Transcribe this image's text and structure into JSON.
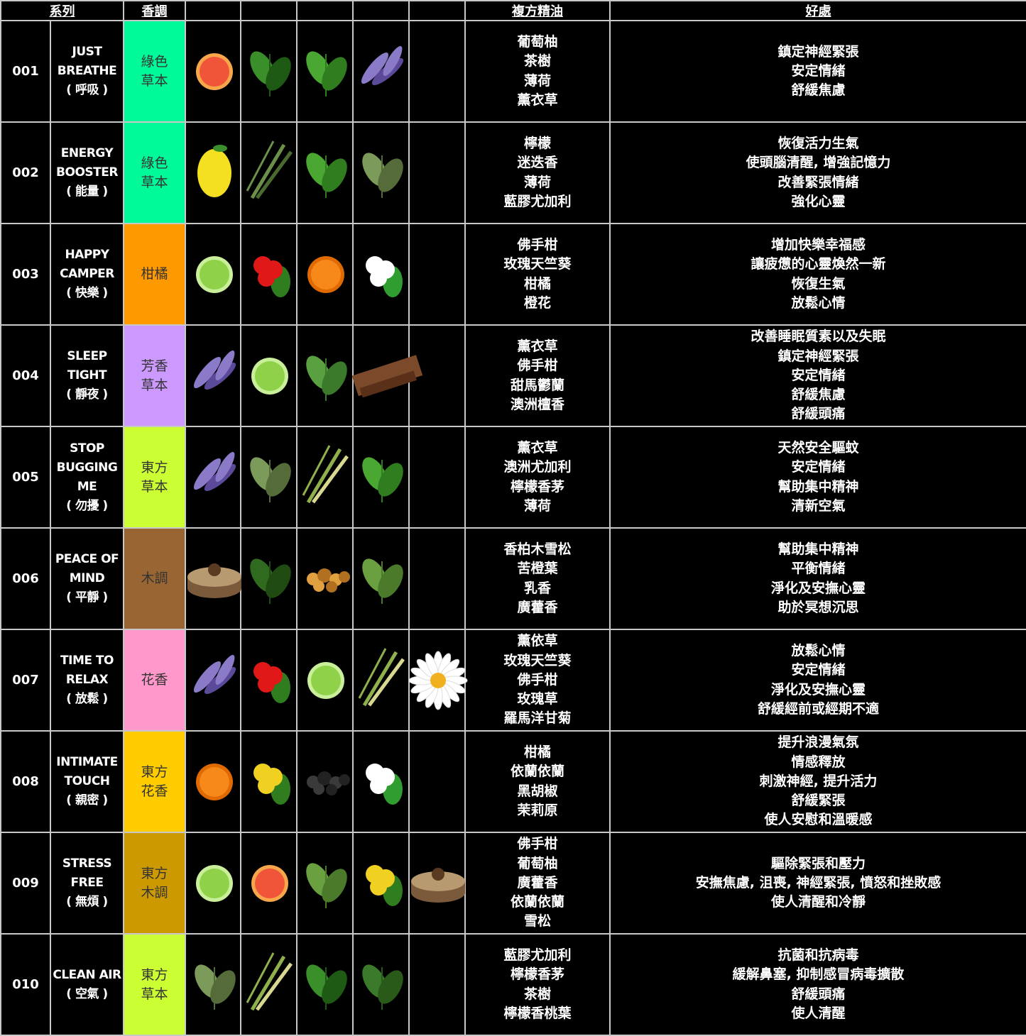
{
  "header": {
    "series": "系列",
    "note": "香調",
    "oils": "複方精油",
    "benefits": "好處"
  },
  "rows": [
    {
      "id": "001",
      "name": [
        "JUST",
        "BREATHE",
        "( 呼吸 )"
      ],
      "note": [
        "綠色",
        "草本"
      ],
      "note_color": "#00FA9A",
      "ingredients": [
        "grapefruit",
        "tea-tree",
        "mint",
        "lavender"
      ],
      "oils": [
        "葡萄柚",
        "茶樹",
        "薄荷",
        "薰衣草"
      ],
      "benefits": [
        "鎮定神經緊張",
        "安定情緒",
        "舒緩焦慮"
      ]
    },
    {
      "id": "002",
      "name": [
        "ENERGY",
        "BOOSTER",
        "( 能量 )"
      ],
      "note": [
        "綠色",
        "草本"
      ],
      "note_color": "#00FA9A",
      "ingredients": [
        "lemon",
        "rosemary",
        "mint",
        "eucalyptus"
      ],
      "oils": [
        "檸檬",
        "迷迭香",
        "薄荷",
        "藍膠尤加利"
      ],
      "benefits": [
        "恢復活力生氣",
        "使頭腦清醒, 增強記憶力",
        "改善緊張情緒",
        "強化心靈"
      ]
    },
    {
      "id": "003",
      "name": [
        "HAPPY",
        "CAMPER",
        "( 快樂 )"
      ],
      "note": [
        "柑橘"
      ],
      "note_color": "#FF9900",
      "ingredients": [
        "bergamot",
        "geranium",
        "tangerine",
        "orange-blossom"
      ],
      "oils": [
        "佛手柑",
        "玫瑰天竺葵",
        "柑橘",
        "橙花"
      ],
      "benefits": [
        "增加快樂幸福感",
        "讓疲憊的心靈煥然一新",
        "恢復生氣",
        "放鬆心情"
      ]
    },
    {
      "id": "004",
      "name": [
        "SLEEP",
        "TIGHT",
        "( 靜夜 )"
      ],
      "note": [
        "芳香",
        "草本"
      ],
      "note_color": "#CC99FF",
      "ingredients": [
        "lavender",
        "bergamot",
        "marjoram",
        "sandalwood"
      ],
      "oils": [
        "薰衣草",
        "佛手柑",
        "甜馬鬱蘭",
        "澳洲檀香"
      ],
      "benefits": [
        "改善睡眠質素以及失眠",
        "鎮定神經緊張",
        "安定情緒",
        "舒緩焦慮",
        "舒緩頭痛"
      ]
    },
    {
      "id": "005",
      "name": [
        "STOP",
        "BUGGING",
        "ME",
        "( 勿擾 )"
      ],
      "note": [
        "東方",
        "草本"
      ],
      "note_color": "#CCFF33",
      "ingredients": [
        "lavender",
        "eucalyptus",
        "lemongrass",
        "mint"
      ],
      "oils": [
        "薰衣草",
        "澳洲尤加利",
        "檸檬香茅",
        "薄荷"
      ],
      "benefits": [
        "天然安全驅蚊",
        "安定情緒",
        "幫助集中精神",
        "清新空氣"
      ]
    },
    {
      "id": "006",
      "name": [
        "PEACE OF",
        "MIND",
        "( 平靜 )"
      ],
      "note": [
        "木調"
      ],
      "note_color": "#996633",
      "ingredients": [
        "cedarwood",
        "petitgrain",
        "frankincense",
        "patchouli"
      ],
      "oils": [
        "香柏木雪松",
        "苦橙葉",
        "乳香",
        "廣藿香"
      ],
      "benefits": [
        "幫助集中精神",
        "平衡情緒",
        "淨化及安撫心靈",
        "助於冥想沉思"
      ]
    },
    {
      "id": "007",
      "name": [
        "TIME TO",
        "RELAX",
        "( 放鬆 )"
      ],
      "note": [
        "花香"
      ],
      "note_color": "#FF99CC",
      "ingredients": [
        "lavender",
        "geranium",
        "bergamot",
        "lemongrass",
        "chamomile"
      ],
      "oils": [
        "薰依草",
        "玫瑰天竺葵",
        "佛手柑",
        "玫瑰草",
        "羅馬洋甘菊"
      ],
      "benefits": [
        "放鬆心情",
        "安定情緒",
        "淨化及安撫心靈",
        "舒緩經前或經期不適"
      ]
    },
    {
      "id": "008",
      "name": [
        "INTIMATE",
        "TOUCH",
        "( 親密 )"
      ],
      "note": [
        "東方",
        "花香"
      ],
      "note_color": "#FFCC00",
      "ingredients": [
        "tangerine",
        "ylang-ylang",
        "black-pepper",
        "jasmine"
      ],
      "oils": [
        "柑橘",
        "依蘭依蘭",
        "黑胡椒",
        "茉莉原"
      ],
      "benefits": [
        "提升浪漫氣氛",
        "情感釋放",
        "刺激神經, 提升活力",
        "舒緩緊張",
        "使人安慰和溫暖感"
      ]
    },
    {
      "id": "009",
      "name": [
        "STRESS",
        "FREE",
        "( 無煩 )"
      ],
      "note": [
        "東方",
        "木調"
      ],
      "note_color": "#CC9900",
      "ingredients": [
        "bergamot",
        "grapefruit",
        "patchouli",
        "ylang-ylang",
        "cedarwood"
      ],
      "oils": [
        "佛手柑",
        "葡萄柚",
        "廣藿香",
        "依蘭依蘭",
        "雪松"
      ],
      "benefits": [
        "驅除緊張和壓力",
        "安撫焦慮, 沮喪, 神經緊張, 憤怒和挫敗感",
        "使人清醒和冷靜"
      ]
    },
    {
      "id": "010",
      "name": [
        "CLEAN AIR",
        "( 空氣 )"
      ],
      "note": [
        "東方",
        "草本"
      ],
      "note_color": "#CCFF33",
      "ingredients": [
        "eucalyptus",
        "lemongrass",
        "tea-tree",
        "lemon-myrtle"
      ],
      "oils": [
        "藍膠尤加利",
        "檸檬香茅",
        "茶樹",
        "檸檬香桃葉"
      ],
      "benefits": [
        "抗菌和抗病毒",
        "緩解鼻塞, 抑制感冒病毒擴散",
        "舒緩頭痛",
        "使人清醒"
      ]
    }
  ]
}
